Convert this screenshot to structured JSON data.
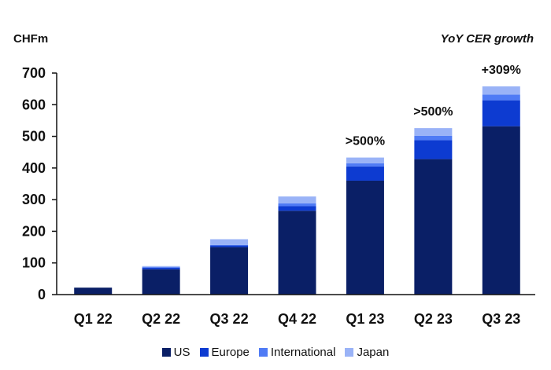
{
  "unit_label": "CHFm",
  "growth_label": "YoY CER growth",
  "chart_data": {
    "type": "bar",
    "stacked": true,
    "categories": [
      "Q1 22",
      "Q2 22",
      "Q3 22",
      "Q4 22",
      "Q1 23",
      "Q2 23",
      "Q3 23"
    ],
    "series": [
      {
        "name": "US",
        "color": "#0a1f66",
        "values": [
          22,
          80,
          150,
          265,
          360,
          428,
          532
        ]
      },
      {
        "name": "Europe",
        "color": "#0d3bd1",
        "values": [
          0,
          5,
          5,
          15,
          45,
          60,
          82
        ]
      },
      {
        "name": "International",
        "color": "#4f7bf5",
        "values": [
          0,
          2,
          2,
          8,
          10,
          14,
          18
        ]
      },
      {
        "name": "Japan",
        "color": "#9ab3f7",
        "values": [
          0,
          3,
          18,
          22,
          18,
          24,
          26
        ]
      }
    ],
    "ylim": [
      0,
      700
    ],
    "yticks": [
      0,
      100,
      200,
      300,
      400,
      500,
      600,
      700
    ],
    "annotations": [
      {
        "category": "Q1 23",
        "text": ">500%"
      },
      {
        "category": "Q2 23",
        "text": ">500%"
      },
      {
        "category": "Q3 23",
        "text": "+309%"
      }
    ],
    "legend_position": "bottom"
  }
}
